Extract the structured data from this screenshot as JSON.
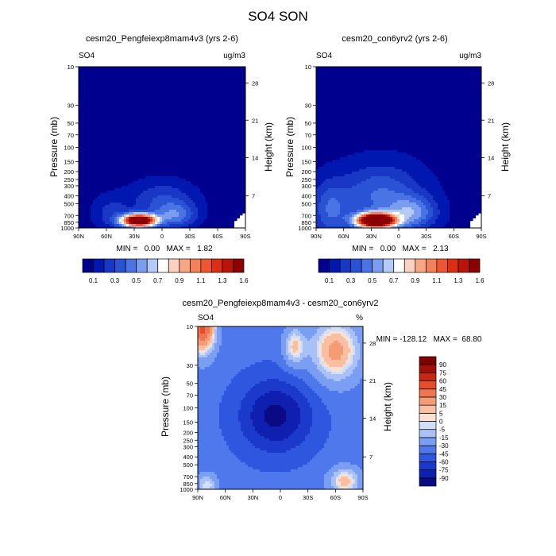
{
  "figure_title": "SO4 SON",
  "colors": {
    "abs_scale": [
      "#00008f",
      "#0018b0",
      "#1737c4",
      "#2a52d4",
      "#4a73e3",
      "#7a9def",
      "#b5cbf7",
      "#ffffff",
      "#fbd2bf",
      "#f8a683",
      "#f5815a",
      "#ee5532",
      "#db2e12",
      "#b81506",
      "#8c0000"
    ],
    "diff_scale": [
      "#0a0a85",
      "#0f1fb0",
      "#1b3acb",
      "#2f56de",
      "#4f78ec",
      "#7a9ef2",
      "#a9c1f7",
      "#d1dffb",
      "#fbe1d3",
      "#f8bfa3",
      "#f49c76",
      "#ef7650",
      "#e54d2d",
      "#c92715",
      "#a30f06",
      "#7f0000"
    ],
    "text": "#000000"
  },
  "chart_data": [
    {
      "type": "heatmap",
      "panel": "top-left",
      "title": "cesm20_Pengfeiexp8mam4v3 (yrs 2-6)",
      "left_label": "SO4",
      "right_label": "ug/m3",
      "xlabel": "",
      "ylabel": "Pressure (mb)",
      "ylabel_right": "Height (km)",
      "x_ticks": [
        "90N",
        "60N",
        "30N",
        "0",
        "30S",
        "60S",
        "90S"
      ],
      "x_range": [
        90,
        -90
      ],
      "y_ticks": [
        "10",
        "30",
        "50",
        "70",
        "100",
        "150",
        "200",
        "250",
        "300",
        "400",
        "500",
        "700",
        "850",
        "1000"
      ],
      "y_range_mb": [
        10,
        1000
      ],
      "height_ticks": [
        "28",
        "21",
        "14",
        "7"
      ],
      "stats": "MIN =   0.00   MAX =   1.82",
      "min": 0.0,
      "max": 1.82,
      "sources": [
        {
          "lat": 25,
          "p": 810,
          "amp": 1.82,
          "wlat": 18,
          "wp": 0.18
        },
        {
          "lat": 0,
          "p": 450,
          "amp": 0.25,
          "wlat": 35,
          "wp": 0.55
        },
        {
          "lat": -15,
          "p": 700,
          "amp": 0.35,
          "wlat": 22,
          "wp": 0.35
        },
        {
          "lat": 55,
          "p": 650,
          "amp": 0.18,
          "wlat": 20,
          "wp": 0.5
        }
      ],
      "background": 0.05,
      "terrain": "antarctica"
    },
    {
      "type": "heatmap",
      "panel": "top-right",
      "title": "cesm20_con6yrv2 (yrs 2-6)",
      "left_label": "SO4",
      "right_label": "ug/m3",
      "xlabel": "",
      "ylabel": "Pressure (mb)",
      "ylabel_right": "Height (km)",
      "x_ticks": [
        "90N",
        "60N",
        "30N",
        "0",
        "30S",
        "60S",
        "90S"
      ],
      "x_range": [
        90,
        -90
      ],
      "y_ticks": [
        "10",
        "30",
        "50",
        "70",
        "100",
        "150",
        "200",
        "250",
        "300",
        "400",
        "500",
        "700",
        "850",
        "1000"
      ],
      "y_range_mb": [
        10,
        1000
      ],
      "height_ticks": [
        "28",
        "21",
        "14",
        "7"
      ],
      "stats": "MIN =   0.00   MAX =   2.13",
      "min": 0.0,
      "max": 2.13,
      "sources": [
        {
          "lat": 25,
          "p": 810,
          "amp": 2.13,
          "wlat": 20,
          "wp": 0.2
        },
        {
          "lat": 20,
          "p": 400,
          "amp": 0.35,
          "wlat": 45,
          "wp": 0.9
        },
        {
          "lat": 75,
          "p": 600,
          "amp": 0.3,
          "wlat": 20,
          "wp": 0.8
        },
        {
          "lat": -15,
          "p": 650,
          "amp": 0.4,
          "wlat": 25,
          "wp": 0.45
        }
      ],
      "background": 0.06,
      "terrain": "antarctica"
    },
    {
      "type": "heatmap",
      "panel": "bottom",
      "title": "cesm20_Pengfeiexp8mam4v3 - cesm20_con6yrv2",
      "left_label": "SO4",
      "right_label": "%",
      "xlabel": "",
      "ylabel": "Pressure (mb)",
      "ylabel_right": "Height (km)",
      "x_ticks": [
        "90N",
        "60N",
        "30N",
        "0",
        "30S",
        "60S",
        "90S"
      ],
      "x_range": [
        90,
        -90
      ],
      "y_ticks": [
        "10",
        "30",
        "50",
        "70",
        "100",
        "150",
        "200",
        "250",
        "300",
        "400",
        "500",
        "700",
        "850",
        "1000"
      ],
      "y_range_mb": [
        10,
        1000
      ],
      "height_ticks": [
        "28",
        "21",
        "14",
        "7"
      ],
      "stats": "MIN = -128.12   MAX =  68.80",
      "min": -128.12,
      "max": 68.8
    }
  ],
  "colorbars": [
    {
      "panel": "top-left",
      "labels": [
        "0.1",
        "0.3",
        "0.5",
        "0.7",
        "0.9",
        "1.1",
        "1.3",
        "1.6"
      ],
      "levels": [
        0.1,
        0.2,
        0.3,
        0.4,
        0.5,
        0.6,
        0.7,
        0.8,
        0.9,
        1.0,
        1.1,
        1.2,
        1.3,
        1.4,
        1.6
      ]
    },
    {
      "panel": "top-right",
      "labels": [
        "0.1",
        "0.3",
        "0.5",
        "0.7",
        "0.9",
        "1.1",
        "1.3",
        "1.6"
      ],
      "levels": [
        0.1,
        0.2,
        0.3,
        0.4,
        0.5,
        0.6,
        0.7,
        0.8,
        0.9,
        1.0,
        1.1,
        1.2,
        1.3,
        1.4,
        1.6
      ]
    },
    {
      "panel": "bottom",
      "labels": [
        "90",
        "75",
        "60",
        "45",
        "30",
        "15",
        "5",
        "0",
        "-5",
        "-15",
        "-30",
        "-45",
        "-60",
        "-75",
        "-90"
      ],
      "levels": [
        -90,
        -75,
        -60,
        -45,
        -30,
        -15,
        -5,
        0,
        5,
        15,
        30,
        45,
        60,
        75,
        90
      ]
    }
  ]
}
